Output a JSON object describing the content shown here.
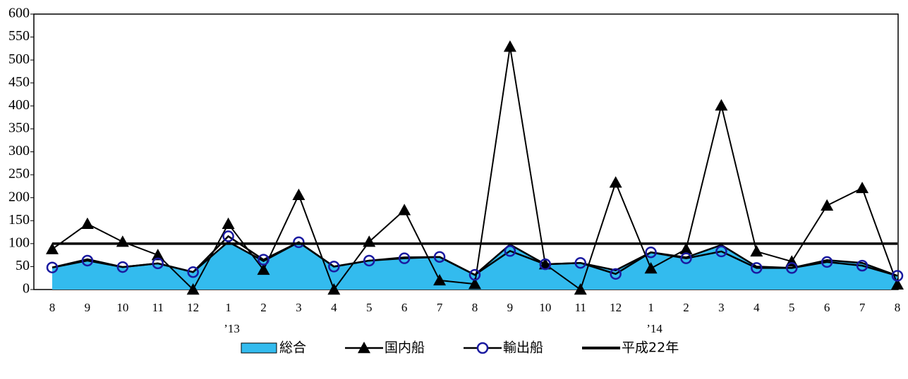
{
  "chart_data": {
    "type": "line",
    "categories": [
      "8",
      "9",
      "10",
      "11",
      "12",
      "1",
      "2",
      "3",
      "4",
      "5",
      "6",
      "7",
      "8",
      "9",
      "10",
      "11",
      "12",
      "1",
      "2",
      "3",
      "4",
      "5",
      "6",
      "7",
      "8"
    ],
    "year_labels": [
      null,
      null,
      null,
      null,
      null,
      "’13",
      null,
      null,
      null,
      null,
      null,
      null,
      null,
      null,
      null,
      null,
      null,
      "’14",
      null,
      null,
      null,
      null,
      null,
      null,
      null
    ],
    "series": [
      {
        "name": "総合",
        "color": "#33bbee",
        "kind": "area",
        "values": [
          48,
          66,
          49,
          57,
          38,
          104,
          62,
          103,
          50,
          63,
          70,
          71,
          32,
          98,
          55,
          58,
          42,
          81,
          70,
          97,
          50,
          47,
          64,
          58,
          30
        ]
      },
      {
        "name": "国内船",
        "color": "#000000",
        "kind": "triangle",
        "values": [
          88,
          143,
          104,
          75,
          0,
          143,
          43,
          206,
          0,
          104,
          173,
          20,
          12,
          529,
          55,
          0,
          233,
          46,
          88,
          401,
          83,
          61,
          183,
          221,
          11
        ]
      },
      {
        "name": "輸出船",
        "color": "#1a1aa0",
        "kind": "circle",
        "values": [
          48,
          63,
          49,
          57,
          38,
          116,
          65,
          103,
          50,
          63,
          68,
          71,
          32,
          84,
          55,
          58,
          34,
          81,
          68,
          83,
          47,
          47,
          60,
          52,
          30
        ]
      },
      {
        "name": "平成22年",
        "color": "#000000",
        "kind": "reference",
        "values": [
          100,
          100,
          100,
          100,
          100,
          100,
          100,
          100,
          100,
          100,
          100,
          100,
          100,
          100,
          100,
          100,
          100,
          100,
          100,
          100,
          100,
          100,
          100,
          100,
          100
        ]
      }
    ],
    "ylim": [
      0,
      600
    ],
    "yticks": [
      0,
      50,
      100,
      150,
      200,
      250,
      300,
      350,
      400,
      450,
      500,
      550,
      600
    ],
    "legend": "bottom"
  }
}
